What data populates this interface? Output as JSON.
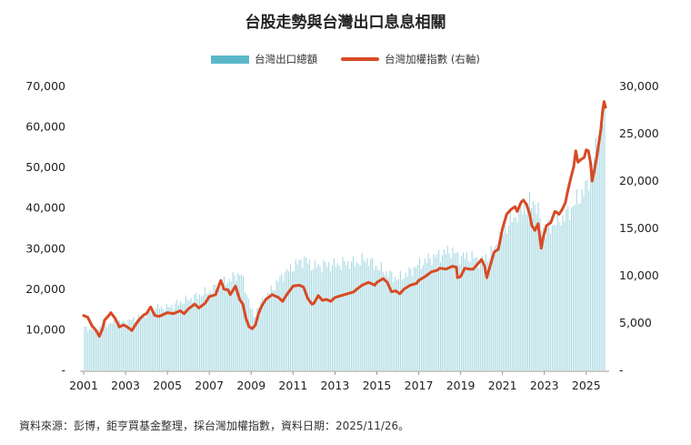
{
  "title": "台股走勢與台灣出口息息相關",
  "legend": {
    "bars_label": "台灣出口總額",
    "line_label": "台灣加權指數 (右軸)"
  },
  "source_note": "資料來源：彭博，鉅亨買基金整理，採台灣加權指數，資料日期：2025/11/26。",
  "colors": {
    "bars": "#5bb8c9",
    "line": "#d84a24",
    "axis": "#999999",
    "text": "#222222"
  },
  "chart_data": {
    "type": "bar+line",
    "title": "台股走勢與台灣出口息息相關",
    "x_ticks": [
      "2001",
      "2003",
      "2005",
      "2007",
      "2009",
      "2011",
      "2013",
      "2015",
      "2017",
      "2019",
      "2021",
      "2023",
      "2025"
    ],
    "y_left": {
      "ticks": [
        "-",
        "10,000",
        "20,000",
        "30,000",
        "40,000",
        "50,000",
        "60,000",
        "70,000"
      ],
      "ylim": [
        0,
        70000
      ]
    },
    "y_right": {
      "ticks": [
        "-",
        "5,000",
        "10,000",
        "15,000",
        "20,000",
        "25,000",
        "30,000"
      ],
      "ylim": [
        0,
        30000
      ]
    },
    "xlim": [
      2001.0,
      2025.92
    ],
    "series": [
      {
        "name": "台灣出口總額",
        "type": "bar",
        "axis": "left",
        "points": [
          [
            2001.0,
            10500
          ],
          [
            2001.5,
            10000
          ],
          [
            2002.0,
            11000
          ],
          [
            2002.5,
            11800
          ],
          [
            2003.0,
            12000
          ],
          [
            2003.5,
            12800
          ],
          [
            2004.0,
            14000
          ],
          [
            2004.5,
            15500
          ],
          [
            2005.0,
            15500
          ],
          [
            2005.5,
            16500
          ],
          [
            2006.0,
            17500
          ],
          [
            2006.5,
            18500
          ],
          [
            2007.0,
            19500
          ],
          [
            2007.5,
            21000
          ],
          [
            2008.0,
            22500
          ],
          [
            2008.5,
            24000
          ],
          [
            2008.9,
            17000
          ],
          [
            2009.1,
            13000
          ],
          [
            2009.5,
            17000
          ],
          [
            2010.0,
            20000
          ],
          [
            2010.5,
            23500
          ],
          [
            2011.0,
            25500
          ],
          [
            2011.5,
            27500
          ],
          [
            2012.0,
            25500
          ],
          [
            2012.5,
            26000
          ],
          [
            2013.0,
            26000
          ],
          [
            2013.5,
            26500
          ],
          [
            2014.0,
            26500
          ],
          [
            2014.5,
            27500
          ],
          [
            2015.0,
            25500
          ],
          [
            2015.5,
            24000
          ],
          [
            2016.0,
            22500
          ],
          [
            2016.5,
            24000
          ],
          [
            2017.0,
            26000
          ],
          [
            2017.5,
            27500
          ],
          [
            2018.0,
            28500
          ],
          [
            2018.5,
            29500
          ],
          [
            2019.0,
            28000
          ],
          [
            2019.5,
            28000
          ],
          [
            2020.0,
            27000
          ],
          [
            2020.5,
            29000
          ],
          [
            2021.0,
            34000
          ],
          [
            2021.5,
            37500
          ],
          [
            2022.0,
            40000
          ],
          [
            2022.5,
            42000
          ],
          [
            2023.0,
            34000
          ],
          [
            2023.5,
            36500
          ],
          [
            2024.0,
            38000
          ],
          [
            2024.5,
            41500
          ],
          [
            2025.0,
            45000
          ],
          [
            2025.5,
            55000
          ],
          [
            2025.85,
            63000
          ]
        ]
      },
      {
        "name": "台灣加權指數 (右軸)",
        "type": "line",
        "axis": "right",
        "points": [
          [
            2001.0,
            5800
          ],
          [
            2001.2,
            5600
          ],
          [
            2001.4,
            4700
          ],
          [
            2001.6,
            4200
          ],
          [
            2001.75,
            3600
          ],
          [
            2001.9,
            4400
          ],
          [
            2002.0,
            5300
          ],
          [
            2002.2,
            5800
          ],
          [
            2002.3,
            6100
          ],
          [
            2002.5,
            5500
          ],
          [
            2002.7,
            4600
          ],
          [
            2002.9,
            4800
          ],
          [
            2003.0,
            4700
          ],
          [
            2003.2,
            4400
          ],
          [
            2003.3,
            4200
          ],
          [
            2003.5,
            4900
          ],
          [
            2003.7,
            5500
          ],
          [
            2003.9,
            5900
          ],
          [
            2004.0,
            6000
          ],
          [
            2004.2,
            6700
          ],
          [
            2004.4,
            5800
          ],
          [
            2004.6,
            5700
          ],
          [
            2004.8,
            5900
          ],
          [
            2005.0,
            6100
          ],
          [
            2005.3,
            6000
          ],
          [
            2005.6,
            6300
          ],
          [
            2005.8,
            6000
          ],
          [
            2006.0,
            6500
          ],
          [
            2006.3,
            7000
          ],
          [
            2006.5,
            6600
          ],
          [
            2006.8,
            7100
          ],
          [
            2007.0,
            7800
          ],
          [
            2007.3,
            8000
          ],
          [
            2007.55,
            9500
          ],
          [
            2007.7,
            8600
          ],
          [
            2007.9,
            8500
          ],
          [
            2008.0,
            8000
          ],
          [
            2008.25,
            8900
          ],
          [
            2008.45,
            7500
          ],
          [
            2008.6,
            7000
          ],
          [
            2008.75,
            5500
          ],
          [
            2008.9,
            4600
          ],
          [
            2009.05,
            4400
          ],
          [
            2009.2,
            4800
          ],
          [
            2009.35,
            6000
          ],
          [
            2009.5,
            6800
          ],
          [
            2009.7,
            7500
          ],
          [
            2010.0,
            8000
          ],
          [
            2010.3,
            7700
          ],
          [
            2010.5,
            7300
          ],
          [
            2010.7,
            8000
          ],
          [
            2011.0,
            8900
          ],
          [
            2011.3,
            9000
          ],
          [
            2011.5,
            8800
          ],
          [
            2011.7,
            7600
          ],
          [
            2011.9,
            7000
          ],
          [
            2012.0,
            7100
          ],
          [
            2012.2,
            7900
          ],
          [
            2012.4,
            7400
          ],
          [
            2012.6,
            7500
          ],
          [
            2012.8,
            7300
          ],
          [
            2013.0,
            7700
          ],
          [
            2013.3,
            7900
          ],
          [
            2013.6,
            8100
          ],
          [
            2013.9,
            8300
          ],
          [
            2014.0,
            8500
          ],
          [
            2014.3,
            9000
          ],
          [
            2014.6,
            9300
          ],
          [
            2014.9,
            9000
          ],
          [
            2015.0,
            9300
          ],
          [
            2015.3,
            9700
          ],
          [
            2015.5,
            9300
          ],
          [
            2015.7,
            8300
          ],
          [
            2015.9,
            8400
          ],
          [
            2016.1,
            8100
          ],
          [
            2016.3,
            8600
          ],
          [
            2016.6,
            9000
          ],
          [
            2016.9,
            9200
          ],
          [
            2017.0,
            9500
          ],
          [
            2017.3,
            9900
          ],
          [
            2017.6,
            10400
          ],
          [
            2017.9,
            10600
          ],
          [
            2018.0,
            10800
          ],
          [
            2018.3,
            10700
          ],
          [
            2018.6,
            11000
          ],
          [
            2018.8,
            10900
          ],
          [
            2018.85,
            9800
          ],
          [
            2019.0,
            9900
          ],
          [
            2019.2,
            10800
          ],
          [
            2019.4,
            10700
          ],
          [
            2019.6,
            10700
          ],
          [
            2019.8,
            11200
          ],
          [
            2020.0,
            11700
          ],
          [
            2020.15,
            11000
          ],
          [
            2020.25,
            9800
          ],
          [
            2020.4,
            11000
          ],
          [
            2020.6,
            12500
          ],
          [
            2020.8,
            12800
          ],
          [
            2020.9,
            13900
          ],
          [
            2021.0,
            15000
          ],
          [
            2021.2,
            16500
          ],
          [
            2021.4,
            17000
          ],
          [
            2021.6,
            17300
          ],
          [
            2021.7,
            16800
          ],
          [
            2021.9,
            17800
          ],
          [
            2022.0,
            18000
          ],
          [
            2022.15,
            17500
          ],
          [
            2022.3,
            16500
          ],
          [
            2022.4,
            15300
          ],
          [
            2022.55,
            14800
          ],
          [
            2022.7,
            15500
          ],
          [
            2022.8,
            13800
          ],
          [
            2022.85,
            12900
          ],
          [
            2022.95,
            14100
          ],
          [
            2023.1,
            15300
          ],
          [
            2023.3,
            15600
          ],
          [
            2023.5,
            16800
          ],
          [
            2023.7,
            16500
          ],
          [
            2023.85,
            17000
          ],
          [
            2024.0,
            17700
          ],
          [
            2024.1,
            18800
          ],
          [
            2024.25,
            20200
          ],
          [
            2024.4,
            21500
          ],
          [
            2024.5,
            23200
          ],
          [
            2024.6,
            22000
          ],
          [
            2024.75,
            22300
          ],
          [
            2024.9,
            22500
          ],
          [
            2025.0,
            23300
          ],
          [
            2025.1,
            23200
          ],
          [
            2025.2,
            22000
          ],
          [
            2025.28,
            20000
          ],
          [
            2025.38,
            21100
          ],
          [
            2025.5,
            22500
          ],
          [
            2025.6,
            24000
          ],
          [
            2025.7,
            25500
          ],
          [
            2025.78,
            27400
          ],
          [
            2025.85,
            28400
          ],
          [
            2025.92,
            27800
          ]
        ]
      }
    ],
    "legend_position": "top-center",
    "grid": false
  }
}
